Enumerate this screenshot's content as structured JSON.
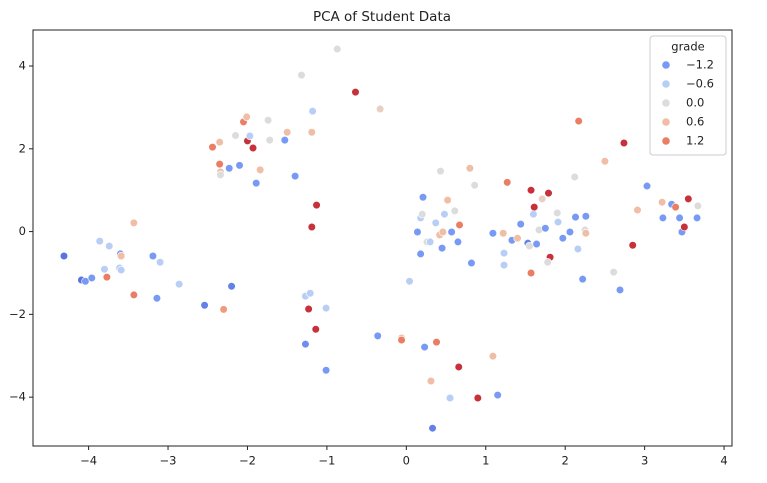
{
  "chart_data": {
    "type": "scatter",
    "title": "PCA of Student Data",
    "xlim": [
      -4.7,
      4.1
    ],
    "ylim": [
      -5.18,
      4.87
    ],
    "xticks": [
      {
        "value": -4,
        "label": "−4"
      },
      {
        "value": -3,
        "label": "−3"
      },
      {
        "value": -2,
        "label": "−2"
      },
      {
        "value": -1,
        "label": "−1"
      },
      0,
      1,
      2,
      3,
      4
    ],
    "yticks": [
      {
        "value": -4,
        "label": "−4"
      },
      {
        "value": -2,
        "label": "−2"
      },
      0,
      2,
      4
    ],
    "grid": false,
    "legend_position": "upper right",
    "hue_title": "grade",
    "hue_legend": [
      {
        "value": -1.2,
        "label": "−1.2"
      },
      {
        "value": -0.6,
        "label": "−0.6"
      },
      {
        "value": 0.0,
        "label": "0.0"
      },
      {
        "value": 0.6,
        "label": "0.6"
      },
      {
        "value": 1.2,
        "label": "1.2"
      }
    ],
    "hue_lim": [
      -1.8,
      1.8
    ],
    "colormap": [
      "#3b4cc0",
      "#6788ee",
      "#9abbff",
      "#c9d7f0",
      "#dddcdc",
      "#edc8b5",
      "#f7a889",
      "#e26952",
      "#b40426"
    ],
    "x": [
      -4.31,
      -4.09,
      -4.04,
      -3.96,
      -3.86,
      -3.8,
      -3.77,
      -3.74,
      -3.61,
      -3.6,
      -3.59,
      -3.59,
      -3.43,
      -3.43,
      -3.19,
      -3.14,
      -3.1,
      -2.86,
      -2.54,
      -2.44,
      -2.35,
      -2.35,
      -2.34,
      -2.34,
      -2.3,
      -2.23,
      -2.2,
      -2.15,
      -2.1,
      -2.05,
      -2.01,
      -2.0,
      -1.97,
      -1.93,
      -1.89,
      -1.84,
      -1.74,
      -1.72,
      -1.53,
      -1.5,
      -1.4,
      -1.32,
      -1.27,
      -1.27,
      -1.23,
      -1.21,
      -1.19,
      -1.19,
      -1.18,
      -1.14,
      -1.13,
      -1.01,
      -1.01,
      -0.87,
      -0.64,
      -0.36,
      -0.33,
      -0.06,
      -0.06,
      0.04,
      0.14,
      0.18,
      0.18,
      0.2,
      0.21,
      0.23,
      0.26,
      0.3,
      0.31,
      0.33,
      0.37,
      0.38,
      0.42,
      0.43,
      0.45,
      0.46,
      0.48,
      0.52,
      0.55,
      0.57,
      0.61,
      0.65,
      0.66,
      0.67,
      0.8,
      0.82,
      0.86,
      0.9,
      1.09,
      1.09,
      1.15,
      1.22,
      1.23,
      1.23,
      1.27,
      1.33,
      1.4,
      1.44,
      1.53,
      1.55,
      1.57,
      1.57,
      1.6,
      1.61,
      1.64,
      1.67,
      1.71,
      1.75,
      1.79,
      1.81,
      1.78,
      1.9,
      1.91,
      1.97,
      2.06,
      2.12,
      2.13,
      2.16,
      2.17,
      2.22,
      2.25,
      2.26,
      2.26,
      2.5,
      2.61,
      2.69,
      2.74,
      2.85,
      2.91,
      3.03,
      3.22,
      3.23,
      3.34,
      3.39,
      3.44,
      3.47,
      3.5,
      3.55,
      3.66,
      3.67
    ],
    "y": [
      -0.59,
      -1.17,
      -1.2,
      -1.12,
      -0.23,
      -0.91,
      -1.1,
      -0.35,
      -0.88,
      -0.54,
      -0.59,
      -0.93,
      0.21,
      -1.53,
      -0.59,
      -1.61,
      -0.74,
      -1.27,
      -1.78,
      2.04,
      1.63,
      2.16,
      1.44,
      1.37,
      -1.88,
      1.53,
      -1.32,
      2.32,
      1.6,
      2.65,
      2.77,
      2.19,
      2.31,
      2.02,
      1.17,
      1.49,
      2.69,
      2.21,
      2.21,
      2.4,
      1.34,
      3.78,
      -1.56,
      -2.72,
      -1.87,
      -1.49,
      0.11,
      2.4,
      2.91,
      -2.36,
      0.64,
      -1.85,
      -3.35,
      4.41,
      3.37,
      -2.52,
      2.96,
      -2.57,
      -2.62,
      -1.2,
      -0.01,
      -0.54,
      0.33,
      0.42,
      0.83,
      -2.79,
      -0.25,
      -0.25,
      -3.61,
      -4.75,
      0.21,
      -2.67,
      -0.08,
      1.46,
      -0.4,
      -0.01,
      0.42,
      0.76,
      -4.02,
      -0.01,
      0.5,
      -0.25,
      -3.27,
      0.16,
      1.53,
      -0.76,
      1.12,
      -4.02,
      -0.04,
      -3.01,
      -3.95,
      -0.04,
      -0.52,
      -0.81,
      1.19,
      -0.21,
      -0.16,
      0.18,
      -0.28,
      -0.35,
      -1.0,
      1.0,
      0.42,
      0.59,
      -0.3,
      0.04,
      0.79,
      0.08,
      0.93,
      -0.62,
      -0.74,
      0.45,
      0.23,
      -0.16,
      -0.01,
      1.32,
      0.35,
      -0.42,
      2.67,
      -1.15,
      0.04,
      0.37,
      -0.04,
      1.7,
      -0.98,
      -1.41,
      2.14,
      -0.33,
      0.52,
      1.1,
      0.71,
      0.33,
      0.66,
      0.59,
      0.33,
      -0.01,
      0.11,
      0.79,
      0.33,
      0.62
    ],
    "hue": [
      -1.5,
      -1.5,
      -1.2,
      -1.2,
      -0.6,
      -0.6,
      1.2,
      -0.6,
      -0.6,
      -1.2,
      0.6,
      -0.6,
      0.6,
      1.2,
      -1.2,
      -1.2,
      -0.6,
      -0.6,
      -1.4,
      1.2,
      1.2,
      0.6,
      0.6,
      0.0,
      1.0,
      -1.2,
      -1.4,
      0.0,
      -1.2,
      1.2,
      0.6,
      1.6,
      -0.6,
      1.6,
      -1.2,
      0.6,
      0.0,
      0.0,
      -1.2,
      0.6,
      -1.2,
      0.0,
      -0.6,
      -1.3,
      1.6,
      -0.6,
      1.6,
      0.6,
      -0.6,
      1.6,
      1.6,
      -0.6,
      -1.2,
      0.0,
      1.6,
      -1.2,
      0.3,
      0.6,
      1.2,
      -0.6,
      -1.2,
      -1.2,
      -0.6,
      0.0,
      -1.2,
      -1.2,
      0.0,
      -0.6,
      0.6,
      -1.4,
      -0.6,
      1.2,
      0.6,
      0.0,
      -1.2,
      0.6,
      -0.6,
      0.6,
      -0.6,
      -1.2,
      0.0,
      -1.2,
      1.6,
      1.2,
      0.6,
      -1.2,
      0.0,
      1.6,
      -1.2,
      0.6,
      -1.2,
      0.6,
      -0.6,
      -0.6,
      1.2,
      -1.2,
      0.6,
      -1.2,
      -1.4,
      0.0,
      1.2,
      1.6,
      -0.6,
      1.6,
      -1.2,
      0.0,
      0.3,
      -1.2,
      1.6,
      1.6,
      0.0,
      0.0,
      -0.6,
      -1.2,
      -1.2,
      0.0,
      -1.2,
      -0.6,
      1.2,
      -1.2,
      0.0,
      -1.2,
      0.6,
      0.6,
      0.0,
      -1.2,
      1.6,
      1.6,
      0.6,
      -1.2,
      0.6,
      -1.2,
      -1.2,
      1.2,
      -1.2,
      -1.2,
      1.6,
      1.6,
      -1.2,
      0.0
    ]
  }
}
